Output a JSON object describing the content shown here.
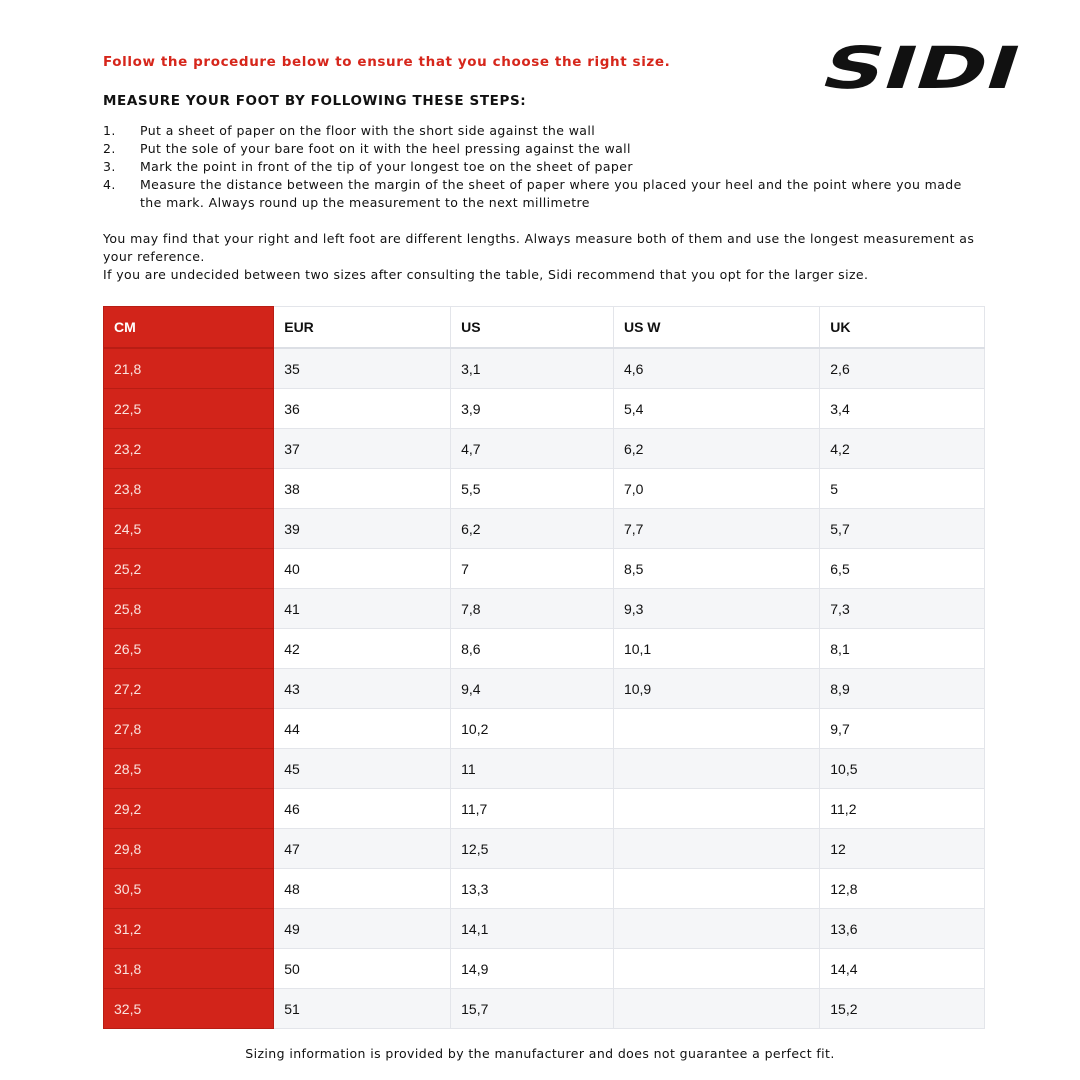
{
  "intro": "Follow the procedure below to ensure that you choose the right size.",
  "logo_text": "SIDI",
  "steps_title": "MEASURE YOUR FOOT BY FOLLOWING THESE STEPS:",
  "steps": [
    {
      "n": "1.",
      "text": "Put a sheet of paper on the floor with the short side against the wall"
    },
    {
      "n": "2.",
      "text": "Put the sole of your bare foot on it with the heel pressing against the wall"
    },
    {
      "n": "3.",
      "text": "Mark the point in front of the tip of your longest toe on the sheet of paper"
    },
    {
      "n": "4.",
      "text": "Measure the distance between the margin of the sheet of paper where you placed your heel and the point where you made the mark. Always round up the measurement to the next millimetre"
    }
  ],
  "note1": "You may find that your right and left foot are different lengths. Always measure both of them and use the longest measurement as your reference.",
  "note2": "If you are undecided between two sizes after consulting the table, Sidi recommend that you opt for the larger size.",
  "table": {
    "headers": [
      "CM",
      "EUR",
      "US",
      "US W",
      "UK"
    ],
    "rows": [
      [
        "21,8",
        "35",
        "3,1",
        "4,6",
        "2,6"
      ],
      [
        "22,5",
        "36",
        "3,9",
        "5,4",
        "3,4"
      ],
      [
        "23,2",
        "37",
        "4,7",
        "6,2",
        "4,2"
      ],
      [
        "23,8",
        "38",
        "5,5",
        "7,0",
        "5"
      ],
      [
        "24,5",
        "39",
        "6,2",
        "7,7",
        "5,7"
      ],
      [
        "25,2",
        "40",
        "7",
        "8,5",
        "6,5"
      ],
      [
        "25,8",
        "41",
        "7,8",
        "9,3",
        "7,3"
      ],
      [
        "26,5",
        "42",
        "8,6",
        "10,1",
        "8,1"
      ],
      [
        "27,2",
        "43",
        "9,4",
        "10,9",
        "8,9"
      ],
      [
        "27,8",
        "44",
        "10,2",
        "",
        "9,7"
      ],
      [
        "28,5",
        "45",
        "11",
        "",
        "10,5"
      ],
      [
        "29,2",
        "46",
        "11,7",
        "",
        "11,2"
      ],
      [
        "29,8",
        "47",
        "12,5",
        "",
        "12"
      ],
      [
        "30,5",
        "48",
        "13,3",
        "",
        "12,8"
      ],
      [
        "31,2",
        "49",
        "14,1",
        "",
        "13,6"
      ],
      [
        "31,8",
        "50",
        "14,9",
        "",
        "14,4"
      ],
      [
        "32,5",
        "51",
        "15,7",
        "",
        "15,2"
      ]
    ]
  },
  "footer": "Sizing information is provided by the manufacturer and does not guarantee a perfect fit.",
  "colors": {
    "accent": "#d2241a"
  }
}
